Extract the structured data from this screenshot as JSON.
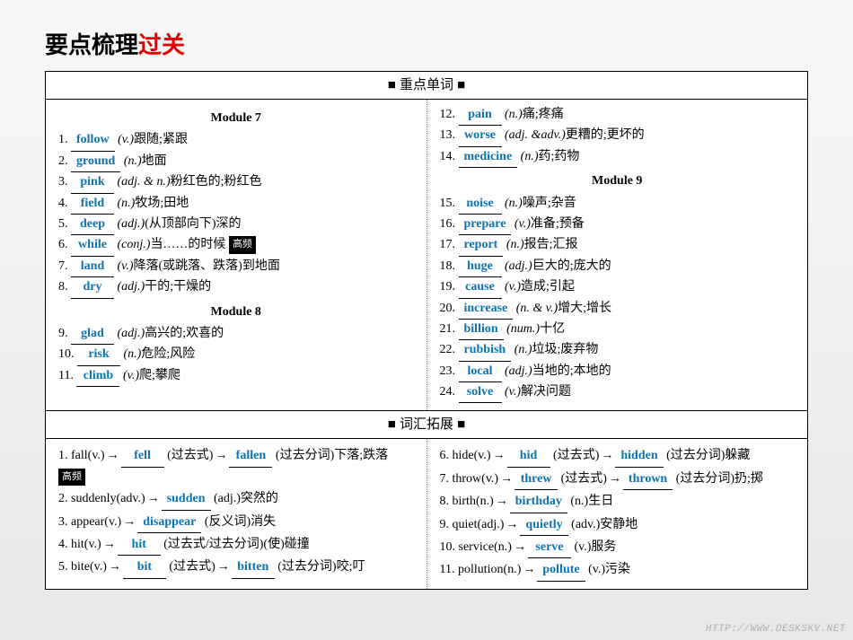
{
  "title": {
    "part1": "要点梳理",
    "part2": "过关"
  },
  "section1_header": "■ 重点单词 ■",
  "section2_header": "■ 词汇拓展 ■",
  "hf_tag": "高频",
  "mod7_hd": "Module 7",
  "mod8_hd": "Module 8",
  "mod9_hd": "Module 9",
  "m7": [
    {
      "n": "1.",
      "w": "follow",
      "p": "(v.)",
      "d": "跟随;紧跟"
    },
    {
      "n": "2.",
      "w": "ground",
      "p": "(n.)",
      "d": "地面"
    },
    {
      "n": "3.",
      "w": "pink",
      "p": "(adj. & n.)",
      "d": "粉红色的;粉红色"
    },
    {
      "n": "4.",
      "w": "field",
      "p": "(n.)",
      "d": "牧场;田地"
    },
    {
      "n": "5.",
      "w": "deep",
      "p": "(adj.)",
      "d": "(从顶部向下)深的"
    },
    {
      "n": "6.",
      "w": "while",
      "p": "(conj.)",
      "d": "当……的时候 "
    },
    {
      "n": "7.",
      "w": "land",
      "p": "(v.)",
      "d": "降落(或跳落、跌落)到地面"
    },
    {
      "n": "8.",
      "w": "dry",
      "p": "(adj.)",
      "d": "干的;干燥的"
    }
  ],
  "m8": [
    {
      "n": "9.",
      "w": "glad",
      "p": "(adj.)",
      "d": "高兴的;欢喜的"
    },
    {
      "n": "10.",
      "w": "risk",
      "p": "(n.)",
      "d": "危险;风险"
    },
    {
      "n": "11.",
      "w": "climb",
      "p": "(v.)",
      "d": "爬;攀爬"
    }
  ],
  "r1": [
    {
      "n": "12.",
      "w": "pain",
      "p": "(n.)",
      "d": "痛;疼痛"
    },
    {
      "n": "13.",
      "w": "worse",
      "p": "(adj. &adv.)",
      "d": "更糟的;更坏的"
    },
    {
      "n": "14.",
      "w": "medicine",
      "p": "(n.)",
      "d": "药;药物"
    }
  ],
  "m9": [
    {
      "n": "15.",
      "w": "noise",
      "p": "(n.)",
      "d": "噪声;杂音"
    },
    {
      "n": "16.",
      "w": "prepare",
      "p": "(v.)",
      "d": "准备;预备"
    },
    {
      "n": "17.",
      "w": "report",
      "p": "(n.)",
      "d": "报告;汇报"
    },
    {
      "n": "18.",
      "w": "huge",
      "p": "(adj.)",
      "d": "巨大的;庞大的"
    },
    {
      "n": "19.",
      "w": "cause",
      "p": "(v.)",
      "d": "造成;引起"
    },
    {
      "n": "20.",
      "w": "increase",
      "p": "(n. & v.)",
      "d": "增大;增长"
    },
    {
      "n": "21.",
      "w": "billion",
      "p": "(num.)",
      "d": "十亿"
    },
    {
      "n": "22.",
      "w": "rubbish",
      "p": "(n.)",
      "d": "垃圾;废弃物"
    },
    {
      "n": "23.",
      "w": "local",
      "p": "(adj.)",
      "d": "当地的;本地的"
    },
    {
      "n": "24.",
      "w": "solve",
      "p": "(v.)",
      "d": "解决问题"
    }
  ],
  "ext_l": [
    {
      "n": "1.",
      "head": "fall(v.)",
      "b1": "fell",
      "m1": "(过去式)",
      "b2": "fallen",
      "tail": "(过去分词)下落;跌落 ",
      "hf": true
    },
    {
      "n": "2.",
      "head": "suddenly(adv.)",
      "b1": "sudden",
      "m1": "(adj.)突然的"
    },
    {
      "n": "3.",
      "head": "appear(v.)",
      "b1": "disappear",
      "m1": "(反义词)消失"
    },
    {
      "n": "4.",
      "head": "hit(v.)",
      "b1": "hit",
      "m1": "(过去式/过去分词)(使)碰撞"
    },
    {
      "n": "5.",
      "head": "bite(v.)",
      "b1": "bit",
      "m1": "(过去式)",
      "b2": "bitten",
      "tail": "(过去分词)咬;叮"
    }
  ],
  "ext_r": [
    {
      "n": "6.",
      "head": "hide(v.)",
      "b1": "hid",
      "m1": "(过去式)",
      "b2": "hidden",
      "tail": "(过去分词)躲藏"
    },
    {
      "n": "7.",
      "head": "throw(v.)",
      "b1": "threw",
      "m1": "(过去式)",
      "b2": "thrown",
      "tail": "(过去分词)扔;掷"
    },
    {
      "n": "8.",
      "head": "birth(n.)",
      "b1": "birthday",
      "m1": "(n.)生日"
    },
    {
      "n": "9.",
      "head": "quiet(adj.)",
      "b1": "quietly",
      "m1": "(adv.)安静地"
    },
    {
      "n": "10.",
      "head": "service(n.)",
      "b1": "serve",
      "m1": "(v.)服务"
    },
    {
      "n": "11.",
      "head": "pollution(n.)",
      "b1": "pollute",
      "m1": "(v.)污染"
    }
  ],
  "watermark": "HTTP://WWW.DESKSKV.NET"
}
